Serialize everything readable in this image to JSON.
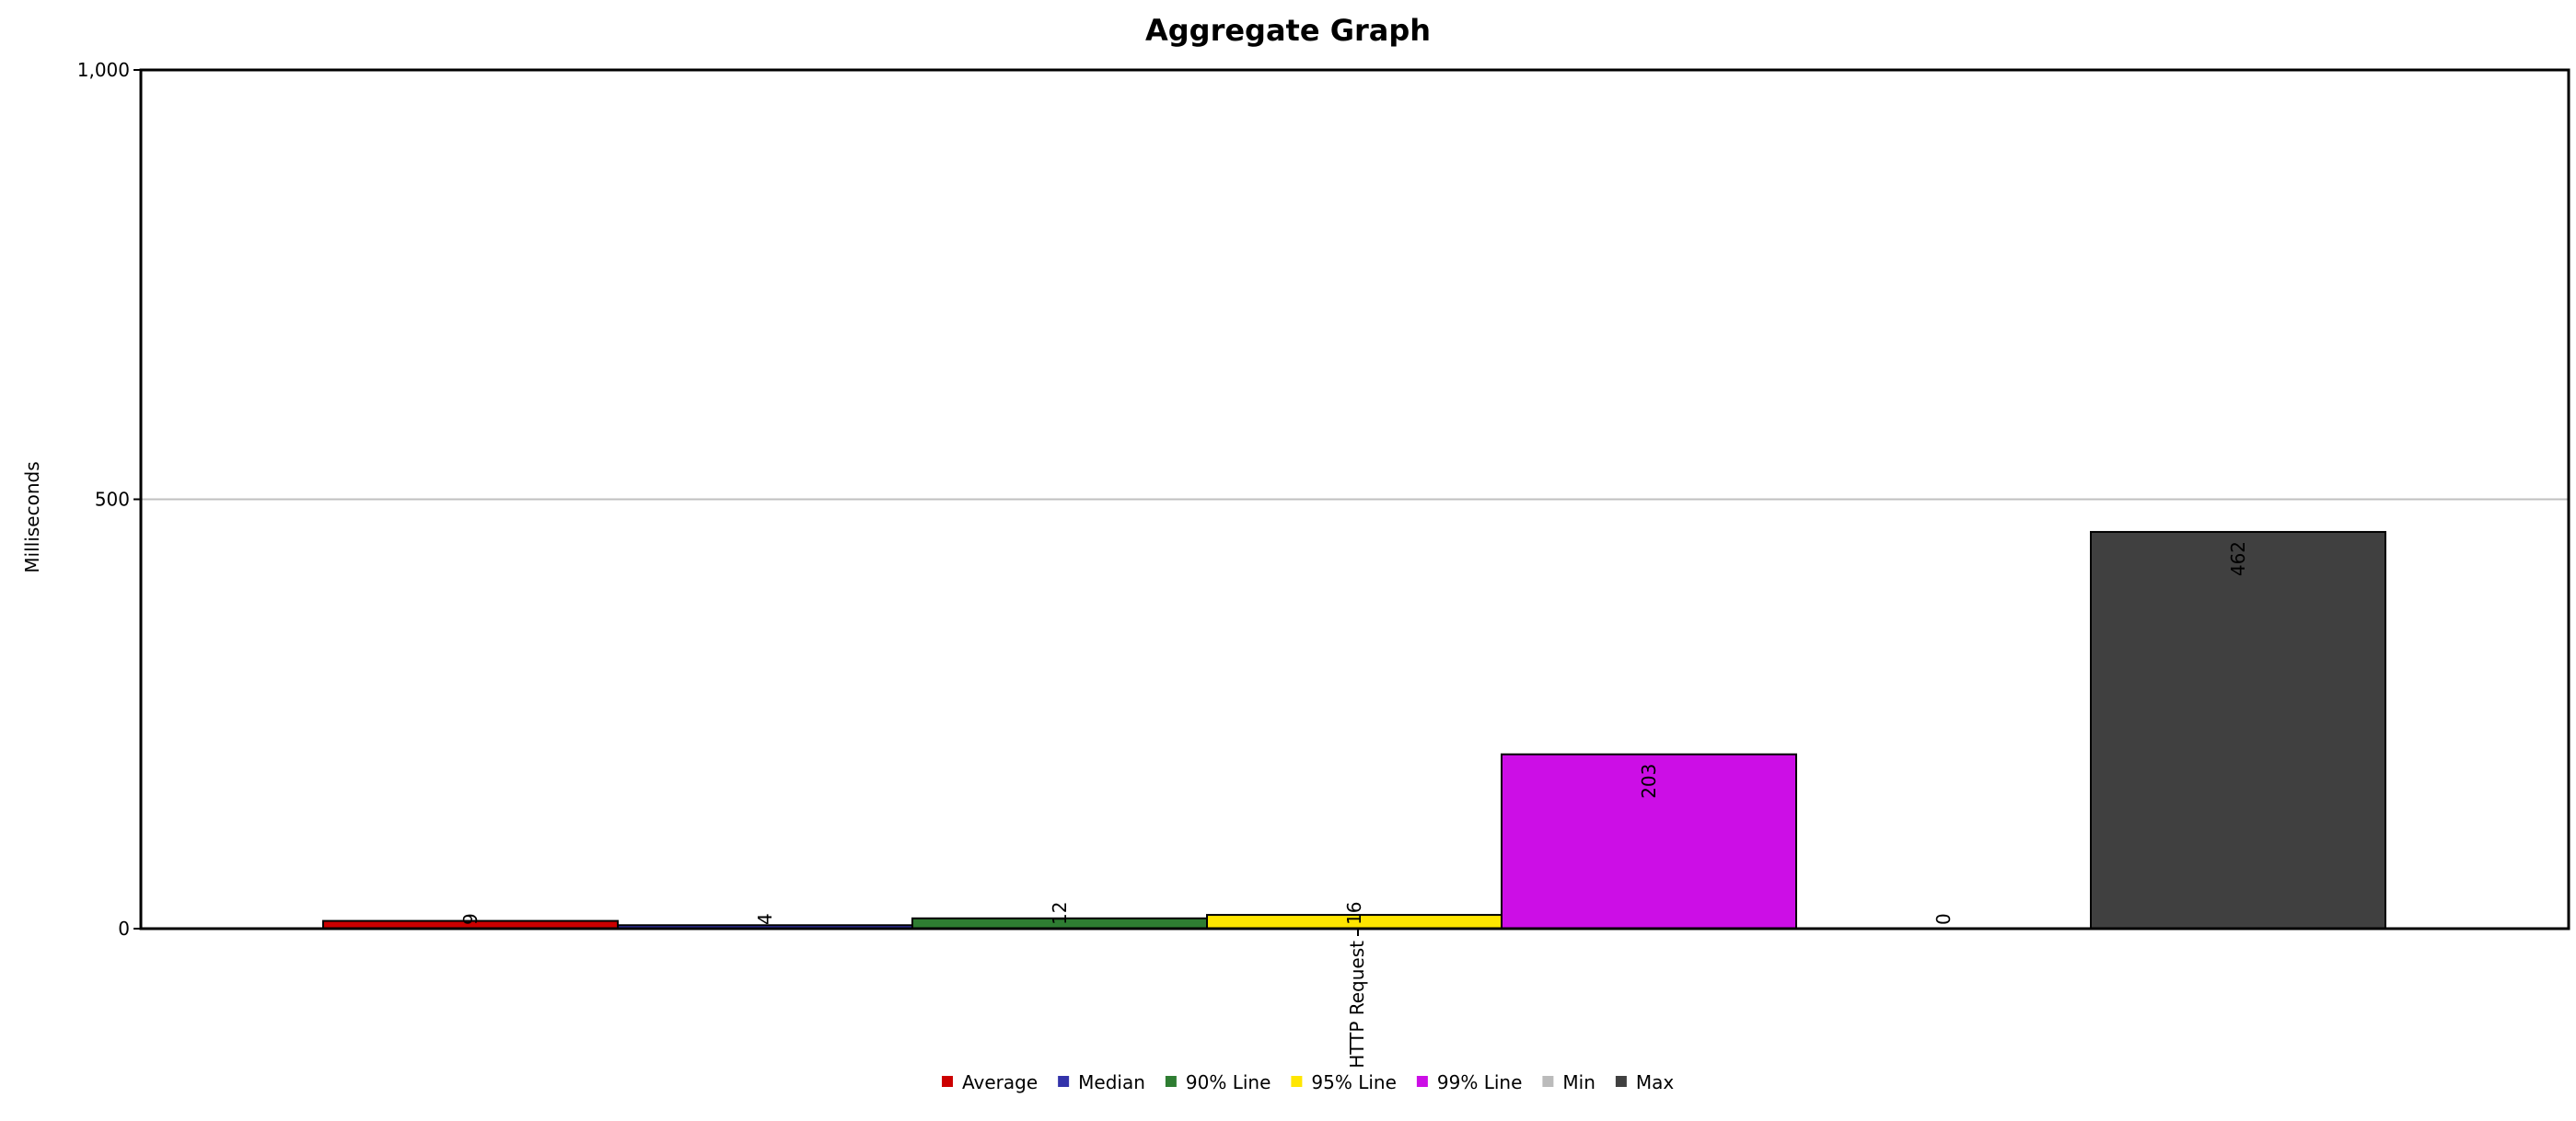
{
  "chart_data": {
    "type": "bar",
    "title": "Aggregate Graph",
    "ylabel": "Milliseconds",
    "xlabel": "",
    "categories": [
      "HTTP Request"
    ],
    "ylim": [
      0,
      1000
    ],
    "yticks": [
      "0",
      "500",
      "1,000"
    ],
    "ytick_values": [
      0,
      500,
      1000
    ],
    "grid": true,
    "legend_position": "bottom",
    "series": [
      {
        "name": "Average",
        "value": 9,
        "label": "9",
        "color": "#cc0000"
      },
      {
        "name": "Median",
        "value": 4,
        "label": "4",
        "color": "#3333aa"
      },
      {
        "name": "90% Line",
        "value": 12,
        "label": "12",
        "color": "#2e7d32"
      },
      {
        "name": "95% Line",
        "value": 16,
        "label": "16",
        "color": "#ffe600"
      },
      {
        "name": "99% Line",
        "value": 203,
        "label": "203",
        "color": "#cc0ee6"
      },
      {
        "name": "Min",
        "value": 0,
        "label": "0",
        "color": "#bbbbbb"
      },
      {
        "name": "Max",
        "value": 462,
        "label": "462",
        "color": "#404040"
      }
    ]
  }
}
